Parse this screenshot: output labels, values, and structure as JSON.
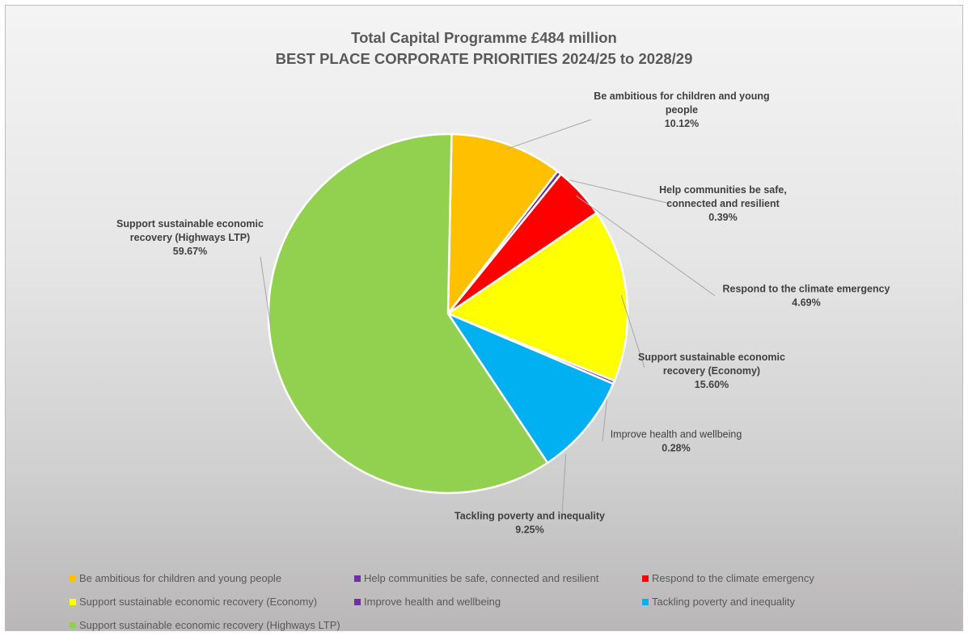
{
  "chart_data": {
    "type": "pie",
    "title": "Total Capital Programme £484 million",
    "subtitle": "BEST PLACE CORPORATE PRIORITIES 2024/25 to 2028/29",
    "legend_position": "bottom",
    "slices": [
      {
        "name": "Be ambitious for children and young people",
        "label_lines": [
          "Be ambitious for children and young",
          "people"
        ],
        "value": 10.12,
        "pct_label": "10.12%",
        "color": "#FFC000"
      },
      {
        "name": "Help communities be safe, connected and resilient",
        "label_lines": [
          "Help communities be safe,",
          "connected and resilient"
        ],
        "value": 0.39,
        "pct_label": "0.39%",
        "color": "#7030A0"
      },
      {
        "name": "Respond to the climate emergency",
        "label_lines": [
          "Respond to the climate emergency"
        ],
        "value": 4.69,
        "pct_label": "4.69%",
        "color": "#FF0000"
      },
      {
        "name": "Support sustainable economic recovery (Economy)",
        "label_lines": [
          "Support sustainable economic",
          "recovery (Economy)"
        ],
        "value": 15.6,
        "pct_label": "15.60%",
        "color": "#FFFF00"
      },
      {
        "name": "Improve health and wellbeing",
        "label_lines": [
          "Improve health and wellbeing"
        ],
        "value": 0.28,
        "pct_label": "0.28%",
        "color": "#7030A0"
      },
      {
        "name": "Tackling poverty and inequality",
        "label_lines": [
          "Tackling poverty and inequality"
        ],
        "value": 9.25,
        "pct_label": "9.25%",
        "color": "#00B0F0"
      },
      {
        "name": "Support sustainable economic recovery (Highways LTP)",
        "label_lines": [
          "Support sustainable economic",
          "recovery (Highways LTP)"
        ],
        "value": 59.67,
        "pct_label": "59.67%",
        "color": "#92D050"
      }
    ]
  }
}
